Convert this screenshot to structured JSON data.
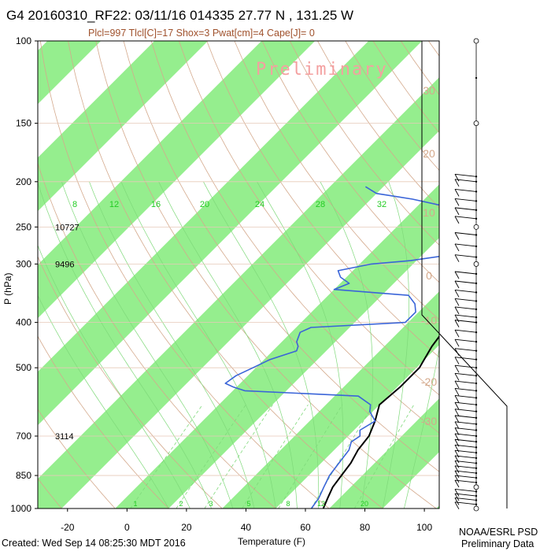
{
  "header": {
    "title": "G4 20160310_RF22: 03/11/16 014335  27.77 N , 131.25 W",
    "params": "Plcl=997 Tlcl[C]=17 Shox=3 Pwat[cm]=4 Cape[J]= 0",
    "watermark": "Preliminary"
  },
  "footer": {
    "created": "Created: Wed Sep 14 08:25:30 MDT 2016",
    "source_line1": "NOAA/ESRL PSD",
    "source_line2": "Preliminary Data"
  },
  "colors": {
    "temperature": "#000000",
    "dewpoint": "#3a64d8",
    "isotherm_band": "#95ee8e",
    "dry_adiabat": "#d4a98c",
    "moist_adiabat": "#7fd97a",
    "mixing_ratio_label": "#22cc22",
    "axis_text": "#000000"
  },
  "chart_data": {
    "type": "line",
    "xlabel": "Temperature (F)",
    "ylabel": "P (hPa)",
    "xlim": [
      -30,
      105
    ],
    "ylim_pressure": [
      1000,
      100
    ],
    "x_ticks": [
      -20,
      0,
      20,
      40,
      60,
      80,
      100
    ],
    "p_ticks": [
      100,
      150,
      200,
      250,
      300,
      400,
      500,
      700,
      850,
      1000
    ],
    "height_labels": [
      {
        "p": 250,
        "text": "10727"
      },
      {
        "p": 300,
        "text": "9496"
      },
      {
        "p": 700,
        "text": "3114"
      }
    ],
    "mixing_ratio_labels": [
      "8",
      "12",
      "16",
      "20",
      "24",
      "28",
      "32"
    ],
    "mixing_ratio_bottom_labels": [
      "1",
      "2",
      "3",
      "5",
      "8",
      "12",
      "20"
    ],
    "isotherm_labels_c": [
      "30",
      "20",
      "10",
      "0",
      "-10",
      "-20",
      "-30"
    ],
    "series": [
      {
        "id": "temperature",
        "points": [
          {
            "p": 1000,
            "t": 66
          },
          {
            "p": 950,
            "t": 64
          },
          {
            "p": 900,
            "t": 62
          },
          {
            "p": 850,
            "t": 61
          },
          {
            "p": 800,
            "t": 60
          },
          {
            "p": 750,
            "t": 58
          },
          {
            "p": 700,
            "t": 57
          },
          {
            "p": 650,
            "t": 54
          },
          {
            "p": 600,
            "t": 50
          },
          {
            "p": 550,
            "t": 51
          },
          {
            "p": 500,
            "t": 51
          },
          {
            "p": 450,
            "t": 48
          },
          {
            "p": 400,
            "t": 46
          },
          {
            "p": 350,
            "t": 41
          },
          {
            "p": 320,
            "t": 38
          },
          {
            "p": 300,
            "t": 35
          },
          {
            "p": 275,
            "t": 31
          },
          {
            "p": 250,
            "t": 28
          },
          {
            "p": 225,
            "t": 24
          },
          {
            "p": 210,
            "t": 22
          },
          {
            "p": 200,
            "t": 23
          },
          {
            "p": 190,
            "t": 24
          },
          {
            "p": 180,
            "t": 24
          }
        ]
      },
      {
        "id": "dewpoint",
        "points": [
          {
            "p": 1000,
            "t": 62
          },
          {
            "p": 950,
            "t": 61
          },
          {
            "p": 900,
            "t": 59
          },
          {
            "p": 850,
            "t": 57
          },
          {
            "p": 800,
            "t": 56
          },
          {
            "p": 750,
            "t": 55
          },
          {
            "p": 720,
            "t": 53
          },
          {
            "p": 700,
            "t": 54
          },
          {
            "p": 680,
            "t": 52
          },
          {
            "p": 650,
            "t": 54
          },
          {
            "p": 620,
            "t": 49
          },
          {
            "p": 600,
            "t": 47
          },
          {
            "p": 575,
            "t": 40
          },
          {
            "p": 560,
            "t": 0
          },
          {
            "p": 550,
            "t": -5
          },
          {
            "p": 540,
            "t": -9
          },
          {
            "p": 520,
            "t": -8
          },
          {
            "p": 500,
            "t": -5
          },
          {
            "p": 480,
            "t": -2
          },
          {
            "p": 460,
            "t": 4
          },
          {
            "p": 450,
            "t": 3
          },
          {
            "p": 440,
            "t": 1
          },
          {
            "p": 420,
            "t": -1
          },
          {
            "p": 410,
            "t": 1
          },
          {
            "p": 400,
            "t": 31
          },
          {
            "p": 380,
            "t": 31
          },
          {
            "p": 365,
            "t": 28
          },
          {
            "p": 350,
            "t": 23
          },
          {
            "p": 340,
            "t": -4
          },
          {
            "p": 330,
            "t": -1
          },
          {
            "p": 320,
            "t": -6
          },
          {
            "p": 310,
            "t": -9
          },
          {
            "p": 300,
            "t": 0
          },
          {
            "p": 295,
            "t": 12
          },
          {
            "p": 285,
            "t": 26
          },
          {
            "p": 275,
            "t": 32
          },
          {
            "p": 265,
            "t": 30
          },
          {
            "p": 255,
            "t": 26
          },
          {
            "p": 245,
            "t": 15
          },
          {
            "p": 235,
            "t": 12
          },
          {
            "p": 225,
            "t": 4
          },
          {
            "p": 218,
            "t": -8
          },
          {
            "p": 212,
            "t": -22
          },
          {
            "p": 205,
            "t": -28
          }
        ]
      }
    ],
    "wind_barbs": {
      "levels": [
        100,
        120,
        150,
        195,
        200,
        210,
        220,
        230,
        240,
        250,
        260,
        275,
        290,
        300,
        315,
        330,
        345,
        360,
        375,
        390,
        400,
        420,
        440,
        460,
        480,
        500,
        520,
        540,
        560,
        580,
        600,
        620,
        640,
        660,
        680,
        700,
        720,
        740,
        760,
        780,
        800,
        820,
        840,
        860,
        880,
        900,
        920,
        940,
        960,
        980,
        1000
      ],
      "calm_levels": [
        100,
        150,
        250,
        300,
        850,
        900,
        950,
        1000
      ]
    }
  }
}
